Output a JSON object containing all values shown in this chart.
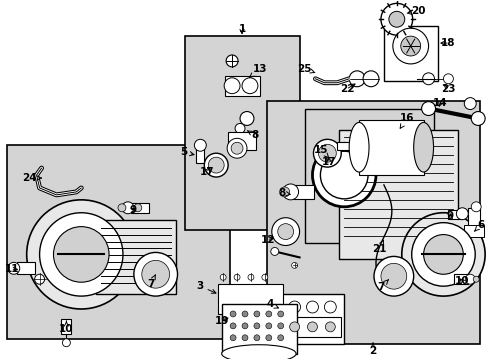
{
  "fig_width": 4.89,
  "fig_height": 3.6,
  "dpi": 100,
  "bg_color": "#ffffff",
  "image_b64": ""
}
